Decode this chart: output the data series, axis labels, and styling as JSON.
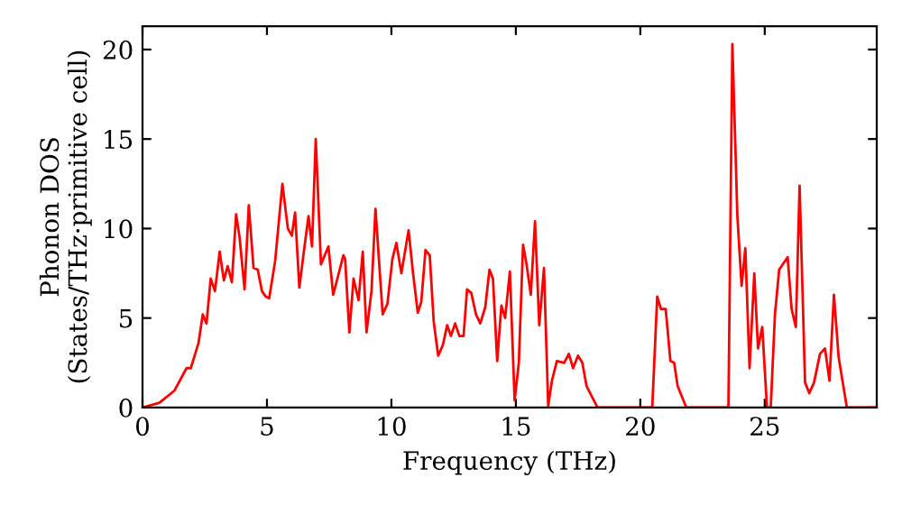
{
  "chart_data": {
    "type": "line",
    "xlabel": "Frequency (THz)",
    "ylabel": "Phonon DOS\n(States/THz·primitive cell)",
    "xlim": [
      0,
      29.5
    ],
    "ylim": [
      0,
      21.3
    ],
    "xticks": [
      0,
      5,
      10,
      15,
      20,
      25
    ],
    "yticks": [
      0,
      5,
      10,
      15,
      20
    ],
    "grid": false,
    "marker": "none",
    "line_style": "solid",
    "series": [
      {
        "color": "#ff0000",
        "x": [
          0,
          0.68,
          1.28,
          1.77,
          1.94,
          2.25,
          2.42,
          2.57,
          2.74,
          2.91,
          3.1,
          3.27,
          3.42,
          3.59,
          3.76,
          3.9,
          4.1,
          4.27,
          4.46,
          4.63,
          4.8,
          4.95,
          5.09,
          5.33,
          5.62,
          5.84,
          6.0,
          6.13,
          6.3,
          6.5,
          6.67,
          6.81,
          6.96,
          7.17,
          7.47,
          7.66,
          7.83,
          8.07,
          8.14,
          8.31,
          8.48,
          8.68,
          8.85,
          9.0,
          9.2,
          9.36,
          9.65,
          9.84,
          10.04,
          10.2,
          10.4,
          10.69,
          10.87,
          11.06,
          11.2,
          11.37,
          11.54,
          11.7,
          11.88,
          12.07,
          12.24,
          12.39,
          12.56,
          12.73,
          12.9,
          13.04,
          13.21,
          13.4,
          13.57,
          13.77,
          13.94,
          14.08,
          14.25,
          14.42,
          14.57,
          14.76,
          14.95,
          15.12,
          15.29,
          15.43,
          15.6,
          15.77,
          15.94,
          16.13,
          16.3,
          16.45,
          16.65,
          16.94,
          17.13,
          17.3,
          17.5,
          17.67,
          17.84,
          18.28,
          19.37,
          20.48,
          20.68,
          20.83,
          21.02,
          21.21,
          21.36,
          21.5,
          21.85,
          23.54,
          23.7,
          23.9,
          24.07,
          24.22,
          24.39,
          24.58,
          24.73,
          24.9,
          25.09,
          25.24,
          25.41,
          25.58,
          25.92,
          26.08,
          26.25,
          26.4,
          26.62,
          26.79,
          26.98,
          27.22,
          27.42,
          27.6,
          27.78,
          27.97,
          28.3,
          29.5
        ],
        "values": [
          0,
          0.27,
          0.94,
          2.2,
          2.2,
          3.6,
          5.2,
          4.7,
          7.2,
          6.5,
          8.7,
          7.1,
          7.9,
          7.0,
          10.8,
          9.5,
          6.6,
          11.3,
          7.8,
          7.7,
          6.5,
          6.2,
          6.1,
          8.2,
          12.5,
          10.0,
          9.6,
          10.9,
          6.7,
          8.9,
          10.7,
          9.0,
          15.0,
          8.0,
          9.0,
          6.3,
          7.2,
          8.5,
          8.3,
          4.2,
          7.2,
          6.0,
          8.7,
          4.2,
          6.5,
          11.1,
          5.2,
          5.8,
          8.3,
          9.2,
          7.5,
          9.9,
          7.5,
          5.3,
          5.9,
          8.8,
          8.5,
          4.8,
          2.9,
          3.5,
          4.6,
          4.0,
          4.7,
          4.0,
          4.0,
          6.6,
          6.4,
          5.2,
          4.7,
          5.6,
          7.7,
          7.2,
          2.6,
          5.7,
          5.0,
          7.6,
          0.4,
          2.5,
          9.1,
          8.0,
          6.3,
          10.4,
          4.6,
          7.8,
          0.1,
          1.5,
          2.6,
          2.5,
          3.0,
          2.2,
          2.9,
          2.5,
          1.2,
          0,
          0,
          0,
          6.2,
          5.5,
          5.5,
          2.6,
          2.5,
          1.2,
          0,
          0,
          20.3,
          10.7,
          6.8,
          8.9,
          2.2,
          7.5,
          3.3,
          4.5,
          0,
          0,
          5.2,
          7.7,
          8.4,
          5.5,
          4.5,
          12.4,
          1.4,
          0.8,
          1.4,
          3.0,
          3.3,
          1.5,
          6.3,
          2.8,
          0,
          0
        ]
      }
    ]
  }
}
